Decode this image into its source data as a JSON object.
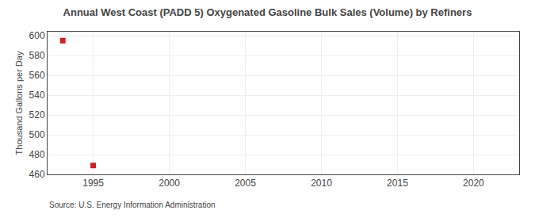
{
  "chart_data": {
    "type": "scatter",
    "title": "Annual West Coast (PADD 5) Oxygenated Gasoline Bulk Sales (Volume) by Refiners",
    "ylabel": "Thousand Gallons per Day",
    "annotations": [
      "Source: U.S. Energy Information Administration"
    ],
    "x": [
      1993,
      1995
    ],
    "values": [
      595,
      469
    ],
    "color": "#cc2222",
    "marker": "square",
    "xlim": [
      1992,
      2023
    ],
    "xticks": [
      1995,
      2000,
      2005,
      2010,
      2015,
      2020
    ],
    "ylim": [
      460,
      604
    ],
    "yticks": [
      460,
      480,
      500,
      520,
      540,
      560,
      580,
      600
    ],
    "grid": true
  }
}
